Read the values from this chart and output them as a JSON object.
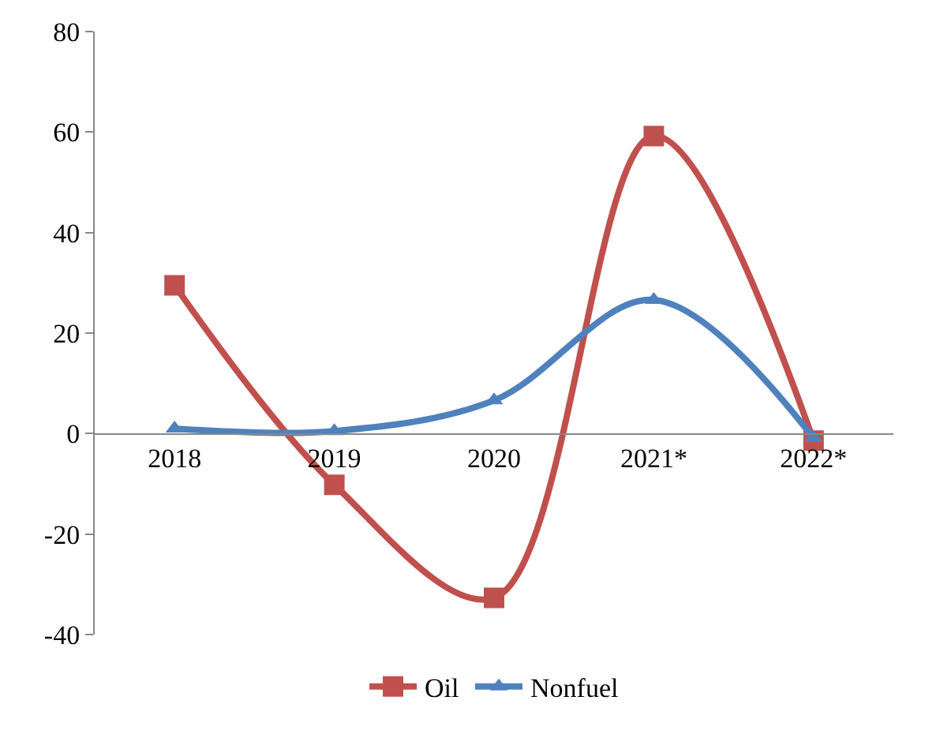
{
  "chart_data": {
    "type": "line",
    "categories": [
      "2018",
      "2019",
      "2020",
      "2021*",
      "2022*"
    ],
    "series": [
      {
        "name": "Oil",
        "color": "#c0504d",
        "marker": "square",
        "values": [
          29.5,
          -10.2,
          -32.7,
          59.2,
          -1.4
        ]
      },
      {
        "name": "Nonfuel",
        "color": "#4f81bd",
        "marker": "triangle",
        "values": [
          1.0,
          0.5,
          6.6,
          26.6,
          -0.9
        ]
      }
    ],
    "ylim": [
      -40,
      80
    ],
    "yticks": [
      -40,
      -20,
      0,
      20,
      40,
      60,
      80
    ],
    "grid": false,
    "legend": "bottom"
  }
}
